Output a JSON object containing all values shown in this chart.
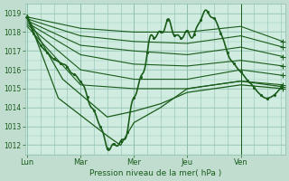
{
  "background_color": "#c0ddd0",
  "plot_bg_color": "#d0ece0",
  "grid_color": "#90c0b0",
  "line_color": "#1a5c1a",
  "marker_color": "#1a5c1a",
  "title": "Pression niveau de la mer( hPa )",
  "ylim": [
    1011.5,
    1019.5
  ],
  "yticks": [
    1012,
    1013,
    1014,
    1015,
    1016,
    1017,
    1018,
    1019
  ],
  "xtick_labels": [
    "Lun",
    "Mar",
    "Mer",
    "Jeu",
    "Ven"
  ],
  "xtick_positions": [
    0,
    24,
    48,
    72,
    96
  ],
  "xlim": [
    -1,
    116
  ],
  "total_hours": 115
}
